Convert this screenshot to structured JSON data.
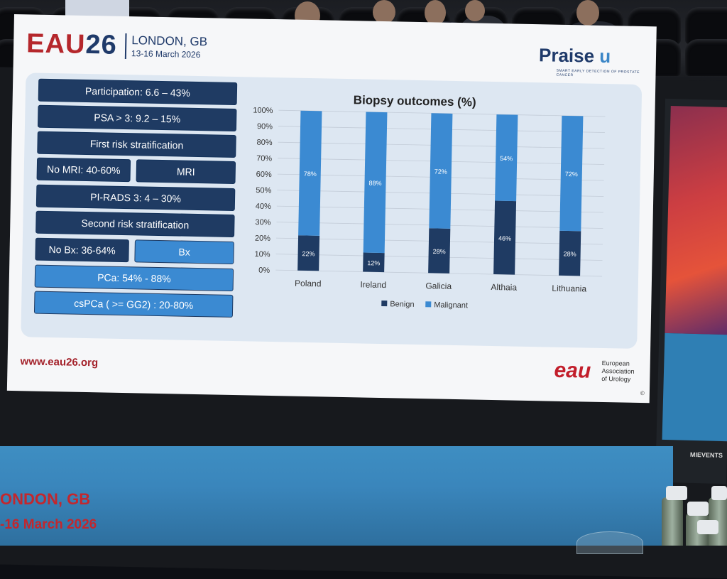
{
  "conference": {
    "logo_eau": "EAU",
    "logo_26": "26",
    "location": "LONDON, GB",
    "dates": "13-16 March 2026",
    "website": "www.eau26.org"
  },
  "praise_logo": {
    "name_main": "Praise",
    "name_u": "u",
    "tagline": "SMART EARLY DETECTION OF PROSTATE CANCER"
  },
  "flow_boxes": {
    "participation": "Participation: 6.6 – 43%",
    "psa": "PSA > 3: 9.2 – 15%",
    "first_risk": "First risk stratification",
    "no_mri": "No MRI: 40-60%",
    "mri": "MRI",
    "pirads": "PI-RADS 3: 4 – 30%",
    "second_risk": "Second risk stratification",
    "no_bx": "No Bx: 36-64%",
    "bx": "Bx",
    "pca": "PCa: 54% - 88%",
    "cspca": "csPCa ( >= GG2) : 20-80%"
  },
  "chart_data": {
    "type": "bar",
    "stacked": true,
    "title": "Biopsy outcomes (%)",
    "categories": [
      "Poland",
      "Ireland",
      "Galicia",
      "Althaia",
      "Lithuania"
    ],
    "series": [
      {
        "name": "Benign",
        "values": [
          22,
          12,
          28,
          46,
          28
        ],
        "labels": [
          "22%",
          "12%",
          "28%",
          "46%",
          "28%"
        ]
      },
      {
        "name": "Malignant",
        "values": [
          78,
          88,
          72,
          54,
          72
        ],
        "labels": [
          "78%",
          "88%",
          "72%",
          "54%",
          "72%"
        ]
      }
    ],
    "ylim": [
      0,
      100
    ],
    "yticks": [
      "0%",
      "10%",
      "20%",
      "30%",
      "40%",
      "50%",
      "60%",
      "70%",
      "80%",
      "90%",
      "100%"
    ],
    "grid": true,
    "legend": "bottom",
    "colors": {
      "Benign": "#1f3b63",
      "Malignant": "#3b8ad2"
    }
  },
  "eau_logo": {
    "mark": "eau",
    "line1": "European",
    "line2": "Association",
    "line3": "of Urology",
    "copyright": "©"
  },
  "lower_screen": {
    "location": "ONDON, GB",
    "dates": "-16 March 2026"
  },
  "side_screen": {
    "brand": "MIEVENTS"
  }
}
